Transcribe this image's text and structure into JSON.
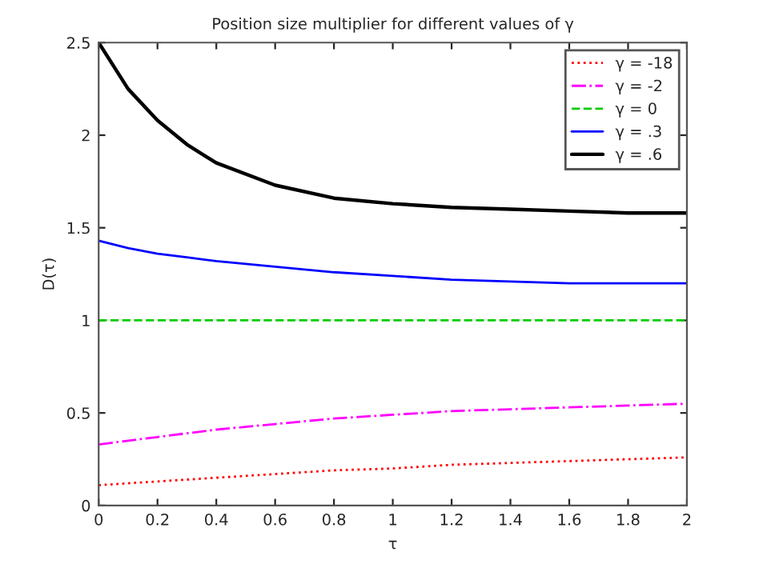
{
  "chart_data": {
    "type": "line",
    "title": "Position size multiplier for different values of γ",
    "xlabel": "τ",
    "ylabel": "D(τ)",
    "x": [
      0,
      0.1,
      0.2,
      0.3,
      0.4,
      0.6,
      0.8,
      1.0,
      1.2,
      1.4,
      1.6,
      1.8,
      2.0
    ],
    "series": [
      {
        "name": "γ = -18",
        "color": "#ff0000",
        "line_style": "dotted",
        "values": [
          0.11,
          0.12,
          0.13,
          0.14,
          0.15,
          0.17,
          0.19,
          0.2,
          0.22,
          0.23,
          0.24,
          0.25,
          0.26
        ]
      },
      {
        "name": "γ = -2",
        "color": "#ff00ff",
        "line_style": "dashdot",
        "values": [
          0.33,
          0.35,
          0.37,
          0.39,
          0.41,
          0.44,
          0.47,
          0.49,
          0.51,
          0.52,
          0.53,
          0.54,
          0.55
        ]
      },
      {
        "name": "γ = 0",
        "color": "#00cc00",
        "line_style": "dashed",
        "values": [
          1,
          1,
          1,
          1,
          1,
          1,
          1,
          1,
          1,
          1,
          1,
          1,
          1
        ]
      },
      {
        "name": "γ = .3",
        "color": "#0000ff",
        "line_style": "solid",
        "values": [
          1.43,
          1.39,
          1.36,
          1.34,
          1.32,
          1.29,
          1.26,
          1.24,
          1.22,
          1.21,
          1.2,
          1.2,
          1.2
        ]
      },
      {
        "name": "γ = .6",
        "color": "#000000",
        "line_style": "solid",
        "values": [
          2.5,
          2.25,
          2.08,
          1.95,
          1.85,
          1.73,
          1.66,
          1.63,
          1.61,
          1.6,
          1.59,
          1.58,
          1.58
        ]
      }
    ],
    "xlim": [
      0,
      2
    ],
    "ylim": [
      0,
      2.5
    ],
    "xticks": [
      0,
      0.2,
      0.4,
      0.6,
      0.8,
      1,
      1.2,
      1.4,
      1.6,
      1.8,
      2
    ],
    "yticks": [
      0,
      0.5,
      1,
      1.5,
      2,
      2.5
    ],
    "grid": false,
    "legend": "top right",
    "marker": "none"
  }
}
